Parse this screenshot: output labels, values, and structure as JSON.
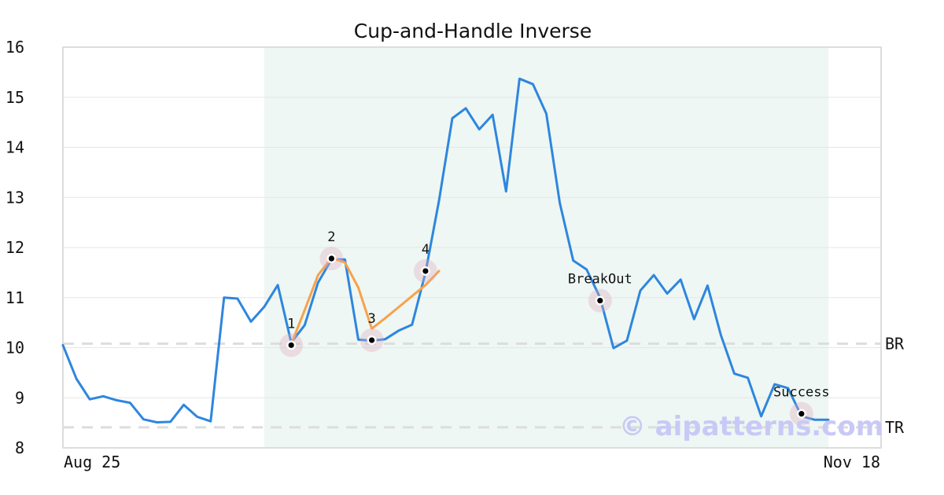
{
  "chart_data": {
    "type": "line",
    "title": "Cup-and-Handle Inverse",
    "xlabel": "",
    "ylabel": "",
    "x_tick_labels": [
      "Aug 25",
      "Nov 18"
    ],
    "y_ticks": [
      8,
      9,
      10,
      11,
      12,
      13,
      14,
      15,
      16
    ],
    "ylim": [
      8,
      16
    ],
    "grid": "horizontal",
    "legend": "none",
    "series": [
      {
        "color": "#2e86de",
        "values": [
          10.05,
          9.38,
          8.97,
          9.03,
          8.95,
          8.9,
          8.57,
          8.51,
          8.52,
          8.86,
          8.62,
          8.53,
          11.0,
          10.98,
          10.52,
          10.82,
          11.25,
          10.1,
          10.45,
          11.3,
          11.76,
          11.76,
          10.16,
          10.14,
          10.17,
          10.34,
          10.46,
          11.5,
          12.93,
          14.58,
          14.78,
          14.36,
          14.65,
          13.12,
          15.37,
          15.26,
          14.67,
          12.89,
          11.74,
          11.56,
          11.0,
          9.99,
          10.14,
          11.14,
          11.45,
          11.08,
          11.36,
          10.57,
          11.24,
          10.25,
          9.48,
          9.4,
          8.63,
          9.27,
          9.19,
          8.63,
          8.56,
          8.56
        ]
      },
      {
        "color": "#f7a24b",
        "segment": "pattern",
        "start_index": 17,
        "values": [
          10.07,
          10.75,
          11.45,
          11.79,
          11.7,
          11.2,
          10.38,
          10.59,
          10.81,
          11.03,
          11.25,
          11.53
        ]
      }
    ],
    "pattern_region": {
      "start_index": 15,
      "end_index": 57,
      "color": "#eef7f3"
    },
    "levels": [
      {
        "label": "BR",
        "value": 10.08
      },
      {
        "label": "TR",
        "value": 8.41
      }
    ],
    "annotations": [
      {
        "label": "1",
        "index": 17,
        "value": 10.05,
        "label_pos": "above"
      },
      {
        "label": "2",
        "index": 20,
        "value": 11.78,
        "label_pos": "above"
      },
      {
        "label": "3",
        "index": 23,
        "value": 10.15,
        "label_pos": "above"
      },
      {
        "label": "4",
        "index": 27,
        "value": 11.53,
        "label_pos": "above"
      },
      {
        "label": "BreakOut",
        "index": 40,
        "value": 10.94,
        "label_pos": "above"
      },
      {
        "label": "Success",
        "index": 55,
        "value": 8.68,
        "label_pos": "above"
      }
    ],
    "watermark": "© aipatterns.com"
  }
}
